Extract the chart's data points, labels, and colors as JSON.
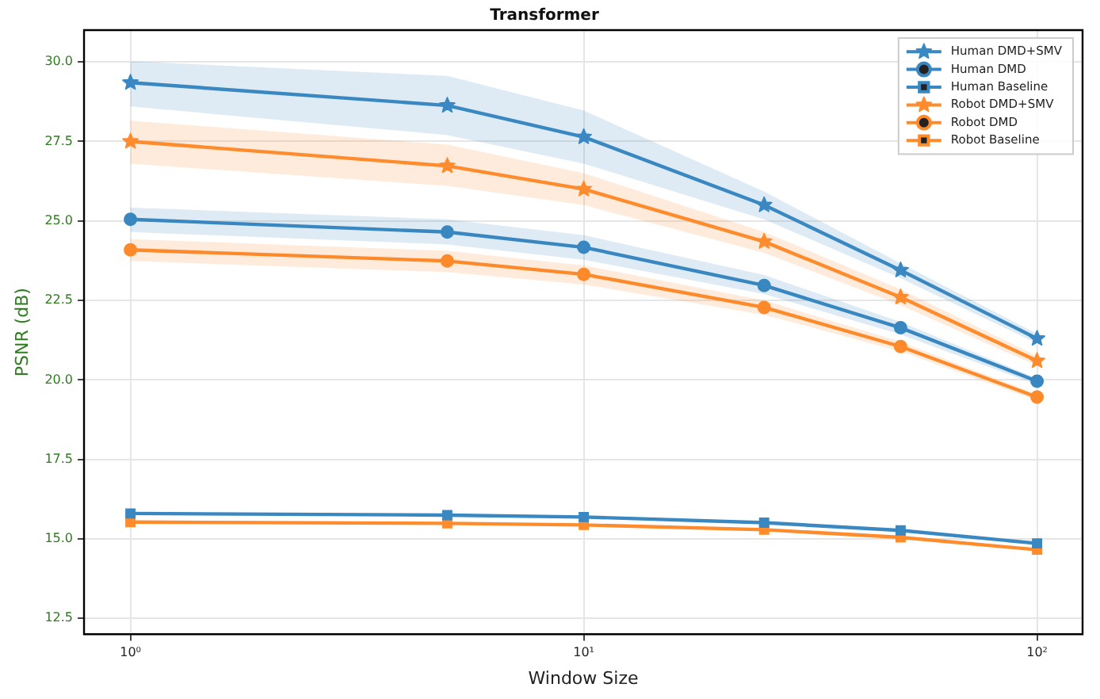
{
  "chart_data": {
    "type": "line",
    "title": "Transformer",
    "xlabel": "Window Size",
    "ylabel": "PSNR (dB)",
    "log": "x",
    "x": [
      1,
      5,
      10,
      25,
      50,
      100
    ],
    "xlim": [
      0.79,
      126
    ],
    "xticks": [
      {
        "value": 1,
        "label": "10⁰"
      },
      {
        "value": 10,
        "label": "10¹"
      },
      {
        "value": 100,
        "label": "10²"
      }
    ],
    "ylim": [
      12.0,
      31.0
    ],
    "yticks": [
      12.5,
      {
        "value": 15,
        "label": "15.0"
      },
      17.5,
      {
        "value": 20,
        "label": "20.0"
      },
      22.5,
      {
        "value": 25,
        "label": "25.0"
      },
      27.5,
      {
        "value": 30,
        "label": "30.0"
      }
    ],
    "grid": true,
    "legend": "top right",
    "line_style": "solid",
    "series": [
      {
        "name": "Human DMD+SMV",
        "color": "#3a88c2",
        "marker": "star",
        "values": [
          29.35,
          28.63,
          27.64,
          25.5,
          23.45,
          21.3
        ],
        "lower": [
          28.6,
          27.7,
          26.8,
          25.05,
          23.2,
          21.15
        ],
        "upper": [
          30.02,
          29.56,
          28.47,
          25.92,
          23.67,
          21.45
        ]
      },
      {
        "name": "Human DMD",
        "color": "#3987c0",
        "marker": "circle",
        "values": [
          25.05,
          24.65,
          24.17,
          22.97,
          21.64,
          19.96
        ],
        "lower": [
          24.65,
          24.26,
          23.78,
          22.7,
          21.43,
          19.85
        ],
        "upper": [
          25.42,
          25.05,
          24.55,
          23.3,
          21.82,
          20.05
        ]
      },
      {
        "name": "Human Baseline",
        "color": "#3a88c2",
        "marker": "square",
        "values": [
          15.8,
          15.75,
          15.69,
          15.51,
          15.27,
          14.86
        ]
      },
      {
        "name": "Robot DMD+SMV",
        "color": "#fe8b2c",
        "marker": "star",
        "values": [
          27.5,
          26.73,
          26.0,
          24.35,
          22.6,
          20.6
        ],
        "lower": [
          26.8,
          26.1,
          25.5,
          24.0,
          22.35,
          20.45
        ],
        "upper": [
          28.15,
          27.4,
          26.5,
          24.65,
          22.85,
          20.75
        ]
      },
      {
        "name": "Robot DMD",
        "color": "#fd8a2a",
        "marker": "circle",
        "values": [
          24.09,
          23.74,
          23.32,
          22.28,
          21.05,
          19.46
        ],
        "lower": [
          23.74,
          23.39,
          23.0,
          22.05,
          20.9,
          19.35
        ],
        "upper": [
          24.43,
          24.06,
          23.6,
          22.5,
          21.2,
          19.55
        ]
      },
      {
        "name": "Robot Baseline",
        "color": "#fe8b2c",
        "marker": "square",
        "values": [
          15.53,
          15.49,
          15.44,
          15.29,
          15.05,
          14.66
        ]
      }
    ]
  }
}
